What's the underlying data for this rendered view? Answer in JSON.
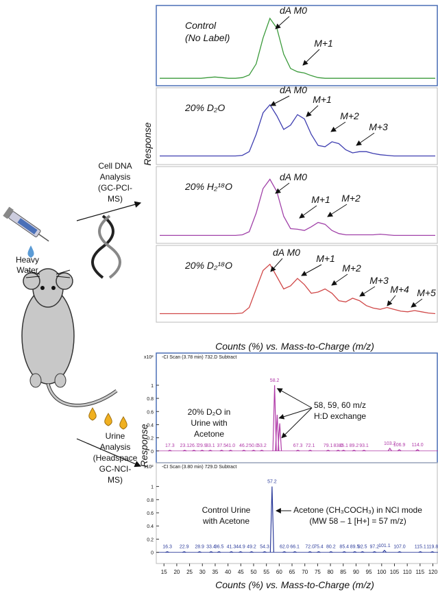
{
  "figure": {
    "dna_analysis": [
      "Cell DNA",
      "Analysis",
      "(GC-PCI-",
      "MS)"
    ],
    "heavy_water": [
      "Heavy",
      "Water"
    ],
    "urine_analysis": [
      "Urine",
      "Analysis",
      "(Headspace",
      "GC-NCI-",
      "MS)"
    ],
    "top_ylabel": "Response",
    "top_xlabel": "Counts (%) vs. Mass-to-Charge (m/z)",
    "bottom_ylabel": "Response",
    "bottom_xlabel": "Counts (%) vs. Mass-to-Charge (m/z)"
  },
  "chart_data": [
    {
      "type": "line",
      "color": "#3a9a3a",
      "label": [
        "Control",
        "(No Label)"
      ],
      "annotations": [
        "dA M0",
        "M+1"
      ],
      "ylim": [
        0,
        100
      ],
      "values": [
        3,
        3,
        3,
        3,
        3,
        3,
        3,
        4,
        5,
        4,
        3,
        3,
        4,
        8,
        25,
        65,
        95,
        80,
        40,
        18,
        13,
        11,
        7,
        4,
        3,
        3,
        3,
        3,
        3,
        3,
        3,
        3,
        3,
        3,
        3,
        3,
        3,
        3,
        3,
        3,
        3
      ]
    },
    {
      "type": "line",
      "color": "#3d3db0",
      "label": [
        "20% D₂O"
      ],
      "annotations": [
        "dA M0",
        "M+1",
        "M+2",
        "M+3"
      ],
      "ylim": [
        0,
        100
      ],
      "values": [
        5,
        5,
        5,
        5,
        5,
        5,
        5,
        5,
        5,
        5,
        5,
        5,
        6,
        12,
        40,
        75,
        88,
        70,
        48,
        55,
        72,
        65,
        40,
        22,
        20,
        28,
        25,
        15,
        10,
        12,
        12,
        9,
        7,
        6,
        5,
        5,
        5,
        5,
        5,
        5,
        5
      ]
    },
    {
      "type": "line",
      "color": "#a040a8",
      "label": [
        "20% H₂¹⁸O"
      ],
      "annotations": [
        "dA M0",
        "M+1",
        "M+2"
      ],
      "ylim": [
        0,
        100
      ],
      "values": [
        4,
        4,
        4,
        4,
        4,
        4,
        4,
        4,
        4,
        4,
        4,
        4,
        5,
        10,
        40,
        80,
        95,
        75,
        35,
        15,
        14,
        12,
        18,
        25,
        22,
        12,
        7,
        5,
        5,
        5,
        5,
        5,
        6,
        5,
        4,
        4,
        4,
        4,
        4,
        4,
        4
      ]
    },
    {
      "type": "line",
      "color": "#d04848",
      "label": [
        "20% D₂¹⁸O"
      ],
      "annotations": [
        "dA M0",
        "M+1",
        "M+2",
        "M+3",
        "M+4",
        "M+5"
      ],
      "ylim": [
        0,
        100
      ],
      "values": [
        5,
        5,
        5,
        5,
        5,
        5,
        5,
        5,
        5,
        5,
        5,
        5,
        6,
        15,
        45,
        75,
        85,
        65,
        45,
        50,
        62,
        52,
        38,
        40,
        45,
        38,
        26,
        24,
        30,
        26,
        18,
        14,
        12,
        15,
        12,
        9,
        8,
        10,
        8,
        6,
        5
      ]
    },
    {
      "type": "stick",
      "color": "#b03aa8",
      "header": "-CI Scan (3.78 min) 732.D  Subtract",
      "scale_label": "x10²",
      "label": [
        "20% D₂O in",
        "Urine with",
        "Acetone"
      ],
      "annotation": [
        "58, 59, 60 m/z",
        "H:D exchange"
      ],
      "xlim": [
        12,
        122
      ],
      "ylim": [
        -0.18,
        1.49
      ],
      "yticks": [
        0,
        0.2,
        0.4,
        0.6,
        0.8,
        1
      ],
      "x": [
        17.3,
        23.1,
        26.7,
        29.9,
        33.1,
        37.5,
        41.0,
        46.2,
        50.0,
        53.2,
        58.2,
        59.2,
        60.2,
        67.3,
        72.1,
        79.1,
        83.0,
        85.1,
        89.2,
        93.1,
        103.2,
        106.9,
        114.0
      ],
      "x_labels": [
        "17.3",
        "23.1",
        "26.7",
        "29.9",
        "33.1",
        "37.5",
        "41.0",
        "46.2",
        "50.0",
        "53.2",
        "58.2",
        null,
        null,
        "67.3",
        "72.1",
        "79.1",
        "83.0",
        "85.1",
        "89.2",
        "93.1",
        "103.2",
        "106.9",
        "114.0"
      ],
      "values": [
        0.01,
        0.01,
        0.01,
        0.01,
        0.01,
        0.01,
        0.01,
        0.01,
        0.01,
        0.01,
        1.0,
        0.55,
        0.42,
        0.01,
        0.01,
        0.01,
        0.01,
        0.01,
        0.01,
        0.01,
        0.04,
        0.02,
        0.02
      ]
    },
    {
      "type": "stick",
      "color": "#2a3a9a",
      "header": "-CI Scan (3.80 min) 729.D  Subtract",
      "scale_label": "x10²",
      "label": [
        "Control Urine",
        "with Acetone"
      ],
      "annotation": [
        "Acetone (CH₃COCH₃) in NCI mode",
        "(MW 58 – 1 [H+] = 57 m/z)"
      ],
      "xlim": [
        12,
        122
      ],
      "ylim": [
        -0.17,
        1.36
      ],
      "yticks": [
        0,
        0.2,
        0.4,
        0.6,
        0.8,
        1
      ],
      "xticks": [
        15,
        20,
        25,
        30,
        35,
        40,
        45,
        50,
        55,
        60,
        65,
        70,
        75,
        80,
        85,
        90,
        95,
        100,
        105,
        110,
        115,
        120
      ],
      "x": [
        16.3,
        22.9,
        28.9,
        33.4,
        36.5,
        41.3,
        44.9,
        49.2,
        54.3,
        57.2,
        62.0,
        66.1,
        72.0,
        75.4,
        80.2,
        85.4,
        89.5,
        92.5,
        97.2,
        101.1,
        107.0,
        115.1,
        119.8
      ],
      "x_labels": [
        "16.3",
        "22.9",
        "28.9",
        "33.4",
        "36.5",
        "41.3",
        "44.9",
        "49.2",
        "54.3",
        "57.2",
        "62.0",
        "66.1",
        "72.0",
        "75.4",
        "80.2",
        "85.4",
        "89.5",
        "92.5",
        "97.2",
        "101.1",
        "107.0",
        "115.1",
        "119.8"
      ],
      "values": [
        0.01,
        0.01,
        0.01,
        0.01,
        0.01,
        0.01,
        0.01,
        0.01,
        0.01,
        1.0,
        0.01,
        0.01,
        0.01,
        0.01,
        0.01,
        0.01,
        0.01,
        0.01,
        0.01,
        0.03,
        0.01,
        0.01,
        0.01
      ]
    }
  ]
}
